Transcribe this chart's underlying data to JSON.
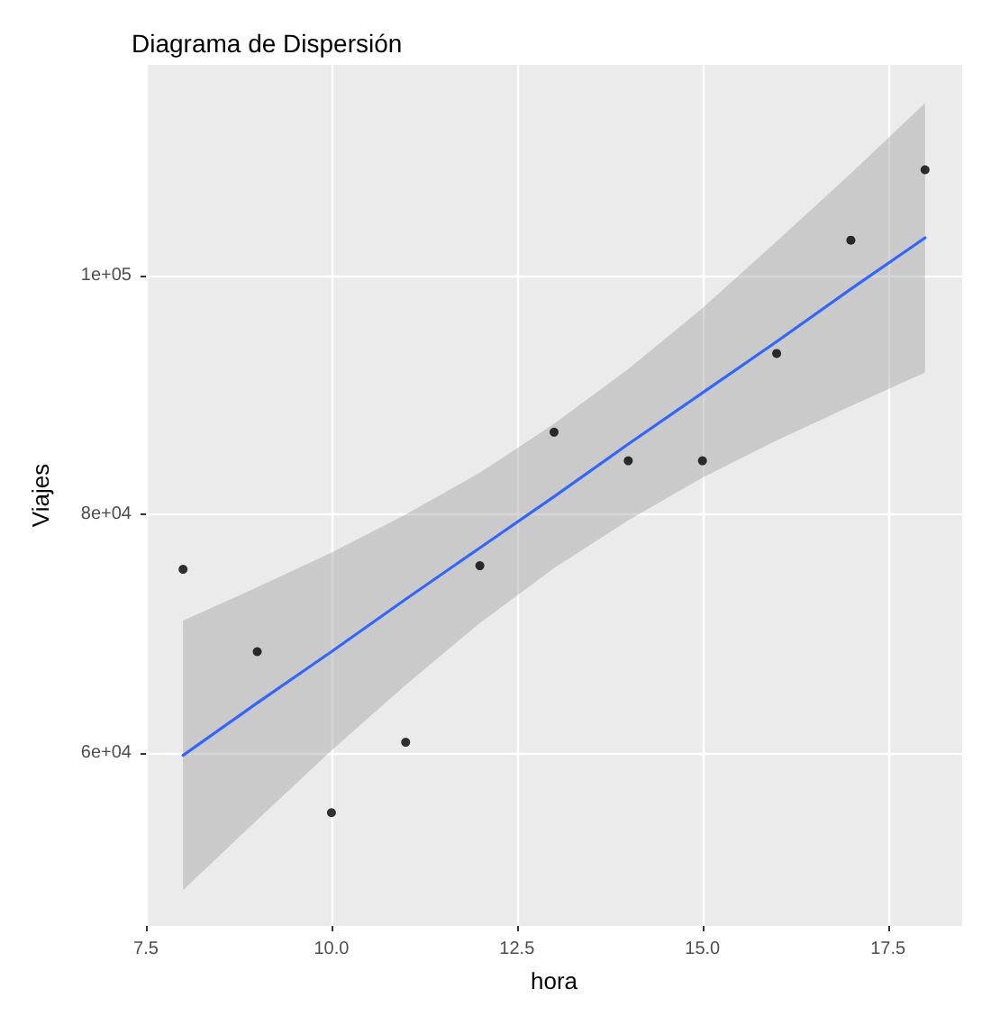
{
  "chart_data": {
    "type": "scatter",
    "title": "Diagrama de Dispersión",
    "xlabel": "hora",
    "ylabel": "Viajes",
    "x": [
      8,
      9,
      10,
      11,
      12,
      13,
      14,
      15,
      16,
      17,
      18
    ],
    "series": [
      {
        "color": "#000000",
        "marker": "circle",
        "values": [
          75400,
          68500,
          55000,
          60900,
          75700,
          86900,
          84500,
          84500,
          93500,
          103000,
          108900
        ]
      },
      {
        "type": "line",
        "marker": "none",
        "color": "#3366ff",
        "x": [
          8,
          9,
          10,
          11,
          12,
          13,
          14,
          15,
          16,
          17,
          18
        ],
        "values": [
          59800,
          64200,
          68500,
          72900,
          77200,
          81500,
          85900,
          90200,
          94500,
          98900,
          103200
        ],
        "lower": [
          48500,
          54400,
          60200,
          65700,
          70900,
          75500,
          79500,
          83100,
          86200,
          89100,
          91900
        ],
        "upper": [
          71100,
          73900,
          76800,
          80000,
          83500,
          87600,
          92200,
          97300,
          102900,
          108600,
          114500
        ]
      }
    ],
    "xlim": [
      7.5,
      18.5
    ],
    "xticks": [
      7.5,
      {
        "value": 10,
        "label": "10.0"
      },
      12.5,
      {
        "value": 15,
        "label": "15.0"
      },
      17.5
    ],
    "ylim": [
      45500,
      117700
    ],
    "yticks": [
      {
        "value": 60000,
        "label": "6e+04"
      },
      {
        "value": 80000,
        "label": "8e+04"
      },
      {
        "value": 100000,
        "label": "1e+05"
      }
    ],
    "grid": true,
    "line_style": "solid"
  }
}
